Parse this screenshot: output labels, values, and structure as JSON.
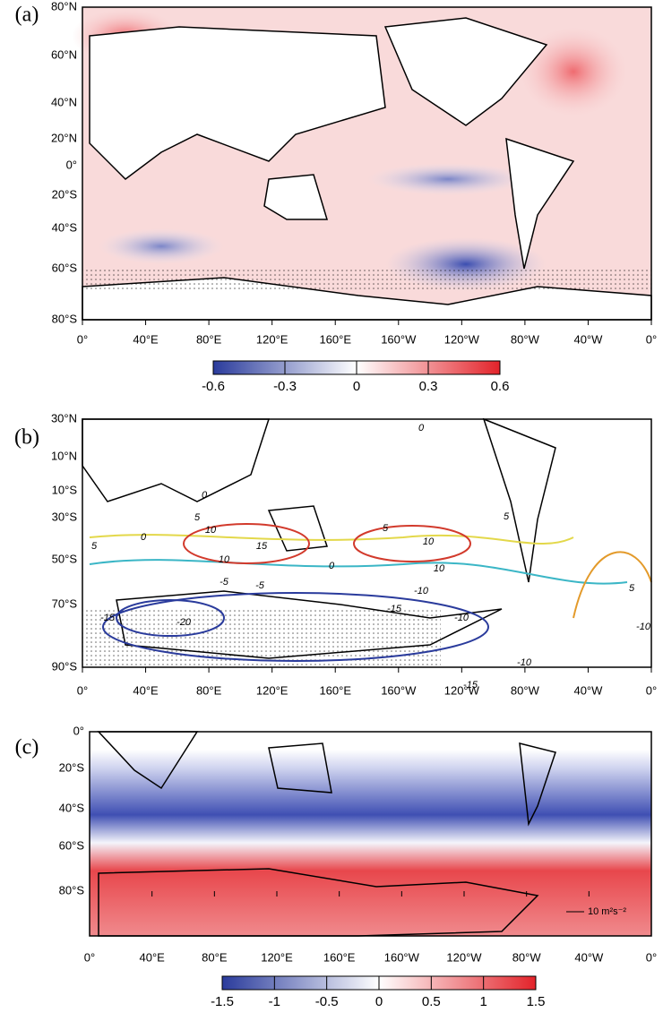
{
  "panels": [
    {
      "label": "(a)",
      "lat_labels": [
        "80°N",
        "60°N",
        "40°N",
        "20°N",
        "0°",
        "20°S",
        "40°S",
        "60°S",
        "80°S"
      ],
      "lon_labels": [
        "0°",
        "40°E",
        "80°E",
        "120°E",
        "160°E",
        "160°W",
        "120°W",
        "80°W",
        "40°W",
        "0°"
      ],
      "colorbar": {
        "lim": [
          -0.6,
          0.6
        ],
        "ticks": [
          -0.6,
          -0.3,
          0,
          0.3,
          0.6
        ]
      }
    },
    {
      "label": "(b)",
      "lat_labels": [
        "30°N",
        "10°N",
        "10°S",
        "30°S",
        "50°S",
        "70°S",
        "90°S"
      ],
      "lon_labels": [
        "0°",
        "40°E",
        "80°E",
        "120°E",
        "160°E",
        "160°W",
        "120°W",
        "80°W",
        "40°W",
        "0°"
      ],
      "contour_labels": [
        "0",
        "0",
        "5",
        "10",
        "15",
        "10",
        "5",
        "5",
        "10",
        "10",
        "0",
        "0",
        "-5",
        "-5",
        "-10",
        "-15",
        "-20",
        "-15",
        "-15",
        "-10",
        "-10",
        "5",
        "5",
        "-10"
      ]
    },
    {
      "label": "(c)",
      "lat_labels": [
        "0°",
        "20°S",
        "40°S",
        "60°S",
        "80°S"
      ],
      "lon_labels": [
        "0°",
        "40°E",
        "80°E",
        "120°E",
        "160°E",
        "160°W",
        "120°W",
        "80°W",
        "40°W",
        "0°"
      ],
      "vector_reference": "10 m²s⁻²",
      "colorbar": {
        "lim": [
          -1.5,
          1.5
        ],
        "ticks": [
          -1.5,
          -1,
          -0.5,
          0,
          0.5,
          1,
          1.5
        ]
      }
    }
  ]
}
